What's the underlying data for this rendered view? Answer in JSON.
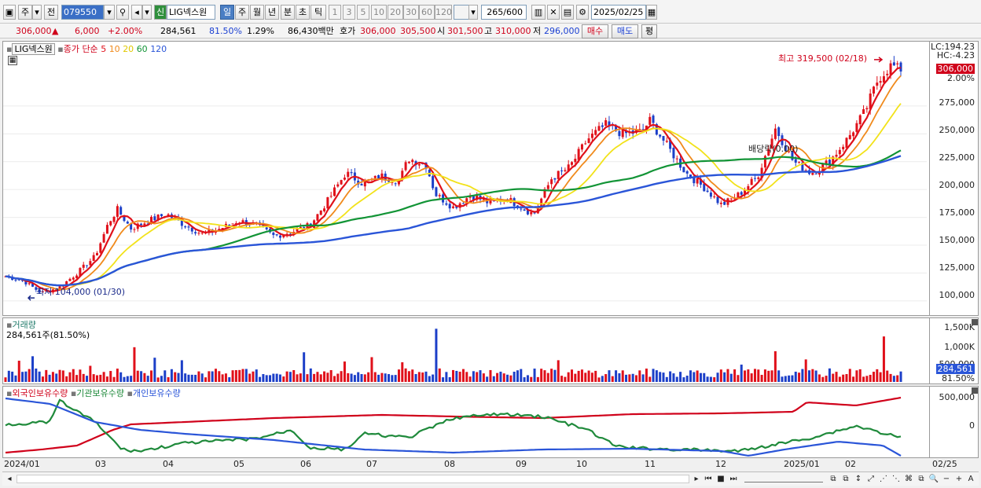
{
  "toolbar": {
    "market": "주",
    "prefix": "전",
    "code": "079550",
    "badge": "신",
    "stock_name": "LIG넥스원",
    "periods": [
      "일",
      "주",
      "월",
      "년",
      "분",
      "초",
      "틱"
    ],
    "minutes": [
      "1",
      "3",
      "5",
      "10",
      "20",
      "30",
      "60",
      "120"
    ],
    "count": "265",
    "count_max": "/600",
    "date": "2025/02/25"
  },
  "info": {
    "price": "306,000",
    "change_arrow": "▲",
    "change": "6,000",
    "change_pct": "+2.00%",
    "volume": "284,561",
    "vol_ratio": "81.50%",
    "turnover": "1.29%",
    "amount": "86,430백만",
    "bid_label": "호가",
    "bid": "306,000",
    "ask": "305,500",
    "open_label": "시",
    "open": "301,500",
    "high_label": "고",
    "high": "310,000",
    "low_label": "저",
    "low": "296,000",
    "buy": "매수",
    "sell": "매도",
    "avg": "평"
  },
  "price_panel": {
    "stock_label": "LIG넥스원",
    "ma_label": "종가 단순",
    "ma_periods": [
      "5",
      "10",
      "20",
      "60",
      "120"
    ],
    "ma_colors": [
      "#e0101a",
      "#f08a1c",
      "#f2e21a",
      "#129436",
      "#2a55d8"
    ],
    "lc": "LC:194.23",
    "hc": "HC:-4.23",
    "current_tag": "306,000",
    "current_pct": "2.00%",
    "high_note": "최고 319,500 (02/18)",
    "low_note": "최저 104,000 (01/30)",
    "dividend_note": "배당락(0.00)",
    "y_ticks": [
      "275,000",
      "250,000",
      "225,000",
      "200,000",
      "175,000",
      "150,000",
      "125,000",
      "100,000"
    ]
  },
  "volume_panel": {
    "title": "거래량",
    "value": "284,561주(81.50%)",
    "y_ticks": [
      "1,500K",
      "1,000K",
      "500,000"
    ],
    "current_tag": "284,561",
    "current_pct": "81.50%"
  },
  "holdings_panel": {
    "legend": [
      "외국인보유수량",
      "기관보유수량",
      "개인보유수량"
    ],
    "legend_colors": [
      "#d0021b",
      "#1f8a3b",
      "#2a55d8"
    ],
    "y_ticks": [
      "500,000",
      "0"
    ]
  },
  "x_axis": [
    "2024/01",
    "03",
    "04",
    "05",
    "06",
    "07",
    "08",
    "09",
    "10",
    "11",
    "12",
    "2025/01",
    "02",
    "02/25"
  ],
  "chart_data": {
    "type": "candlestick",
    "ylim": [
      90000,
      330000
    ],
    "price_path": [
      [
        0,
        122000
      ],
      [
        0.02,
        118000
      ],
      [
        0.04,
        107000
      ],
      [
        0.06,
        112000
      ],
      [
        0.08,
        125000
      ],
      [
        0.1,
        140000
      ],
      [
        0.115,
        170000
      ],
      [
        0.125,
        182000
      ],
      [
        0.14,
        165000
      ],
      [
        0.16,
        172000
      ],
      [
        0.18,
        178000
      ],
      [
        0.2,
        168000
      ],
      [
        0.22,
        160000
      ],
      [
        0.24,
        165000
      ],
      [
        0.26,
        172000
      ],
      [
        0.28,
        168000
      ],
      [
        0.3,
        158000
      ],
      [
        0.32,
        162000
      ],
      [
        0.34,
        168000
      ],
      [
        0.36,
        190000
      ],
      [
        0.38,
        215000
      ],
      [
        0.4,
        205000
      ],
      [
        0.42,
        212000
      ],
      [
        0.44,
        208000
      ],
      [
        0.45,
        228000
      ],
      [
        0.47,
        222000
      ],
      [
        0.48,
        196000
      ],
      [
        0.5,
        184000
      ],
      [
        0.52,
        195000
      ],
      [
        0.54,
        188000
      ],
      [
        0.56,
        192000
      ],
      [
        0.58,
        182000
      ],
      [
        0.59,
        178000
      ],
      [
        0.61,
        210000
      ],
      [
        0.63,
        220000
      ],
      [
        0.65,
        245000
      ],
      [
        0.67,
        258000
      ],
      [
        0.69,
        250000
      ],
      [
        0.71,
        252000
      ],
      [
        0.72,
        262000
      ],
      [
        0.74,
        238000
      ],
      [
        0.76,
        215000
      ],
      [
        0.78,
        202000
      ],
      [
        0.8,
        186000
      ],
      [
        0.82,
        196000
      ],
      [
        0.84,
        212000
      ],
      [
        0.86,
        255000
      ],
      [
        0.88,
        225000
      ],
      [
        0.9,
        215000
      ],
      [
        0.92,
        225000
      ],
      [
        0.94,
        245000
      ],
      [
        0.96,
        270000
      ],
      [
        0.975,
        300000
      ],
      [
        0.99,
        312000
      ],
      [
        1.0,
        306000
      ]
    ],
    "high_close": 319500,
    "low_close": 104000,
    "volume_max": 1500000
  }
}
